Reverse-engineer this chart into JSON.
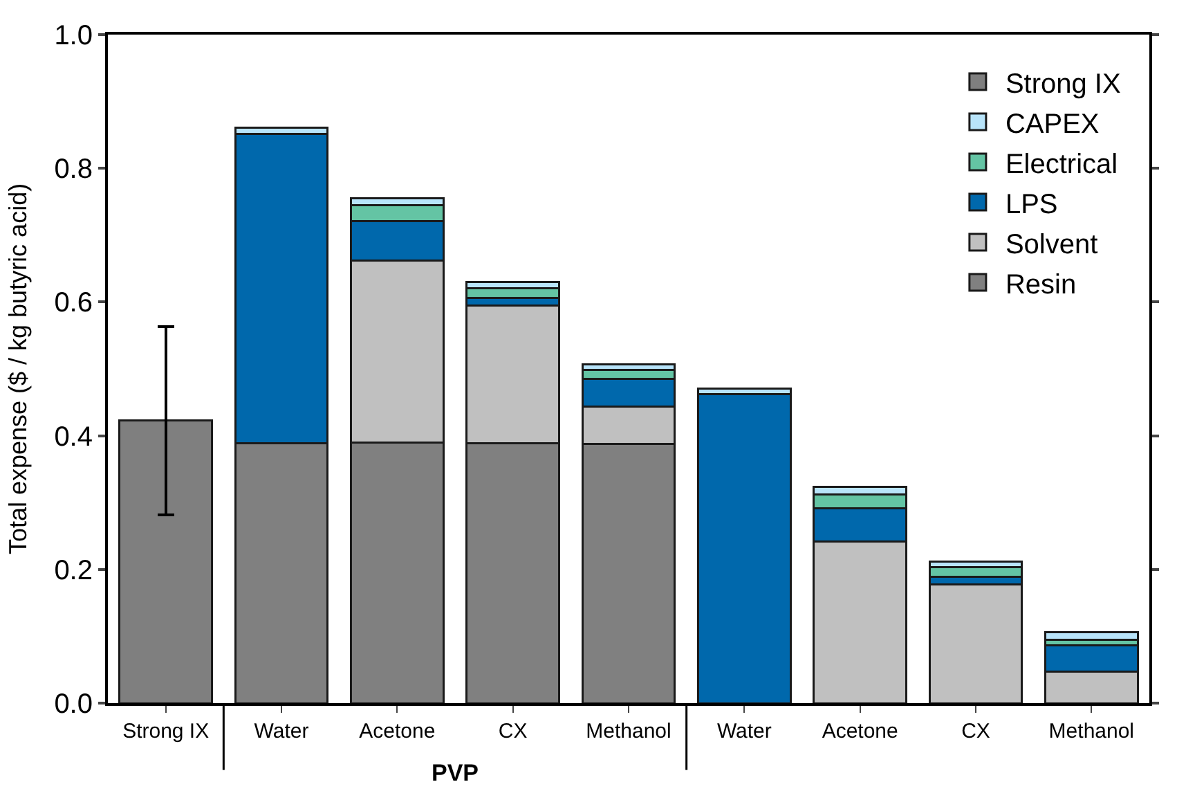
{
  "chart_data": {
    "type": "bar",
    "stacked": true,
    "ylabel": "Total expense ($ / kg butyric acid)",
    "categories": [
      "Strong IX",
      "Water",
      "Acetone",
      "CX",
      "Methanol",
      "Water",
      "Acetone",
      "CX",
      "Methanol"
    ],
    "series": [
      {
        "name": "Resin",
        "color": "#808080",
        "values": [
          null,
          0.389,
          0.39,
          0.389,
          0.388,
          null,
          null,
          null,
          null
        ]
      },
      {
        "name": "Solvent",
        "color": "#c0c0c0",
        "values": [
          null,
          0,
          0.272,
          0.206,
          0.056,
          0,
          0.242,
          0.178,
          0.047
        ]
      },
      {
        "name": "LPS",
        "color": "#0068ac",
        "values": [
          null,
          0.462,
          0.059,
          0.011,
          0.041,
          0.462,
          0.049,
          0.011,
          0.039
        ]
      },
      {
        "name": "Electrical",
        "color": "#64c4a4",
        "values": [
          null,
          0,
          0.024,
          0.015,
          0.013,
          0,
          0.021,
          0.014,
          0.009
        ]
      },
      {
        "name": "CAPEX",
        "color": "#b8e4fa",
        "values": [
          null,
          0.01,
          0.01,
          0.009,
          0.009,
          0.009,
          0.011,
          0.009,
          0.011
        ]
      },
      {
        "name": "Strong IX",
        "color": "#7f7f7f",
        "values": [
          0.423,
          null,
          null,
          null,
          null,
          null,
          null,
          null,
          null
        ],
        "errors": [
          [
            0.282,
            0.563
          ],
          null,
          null,
          null,
          null,
          null,
          null,
          null,
          null
        ]
      }
    ],
    "annotations": [
      "PVP"
    ],
    "ylim": [
      0,
      1.0
    ],
    "yticks": [
      {
        "value": 0,
        "label": "0.0"
      },
      {
        "value": 0.2,
        "label": "0.2"
      },
      {
        "value": 0.4,
        "label": "0.4"
      },
      {
        "value": 0.6,
        "label": "0.6"
      },
      {
        "value": 0.8,
        "label": "0.8"
      },
      {
        "value": 1.0,
        "label": "1.0"
      }
    ],
    "legend": "top right"
  }
}
